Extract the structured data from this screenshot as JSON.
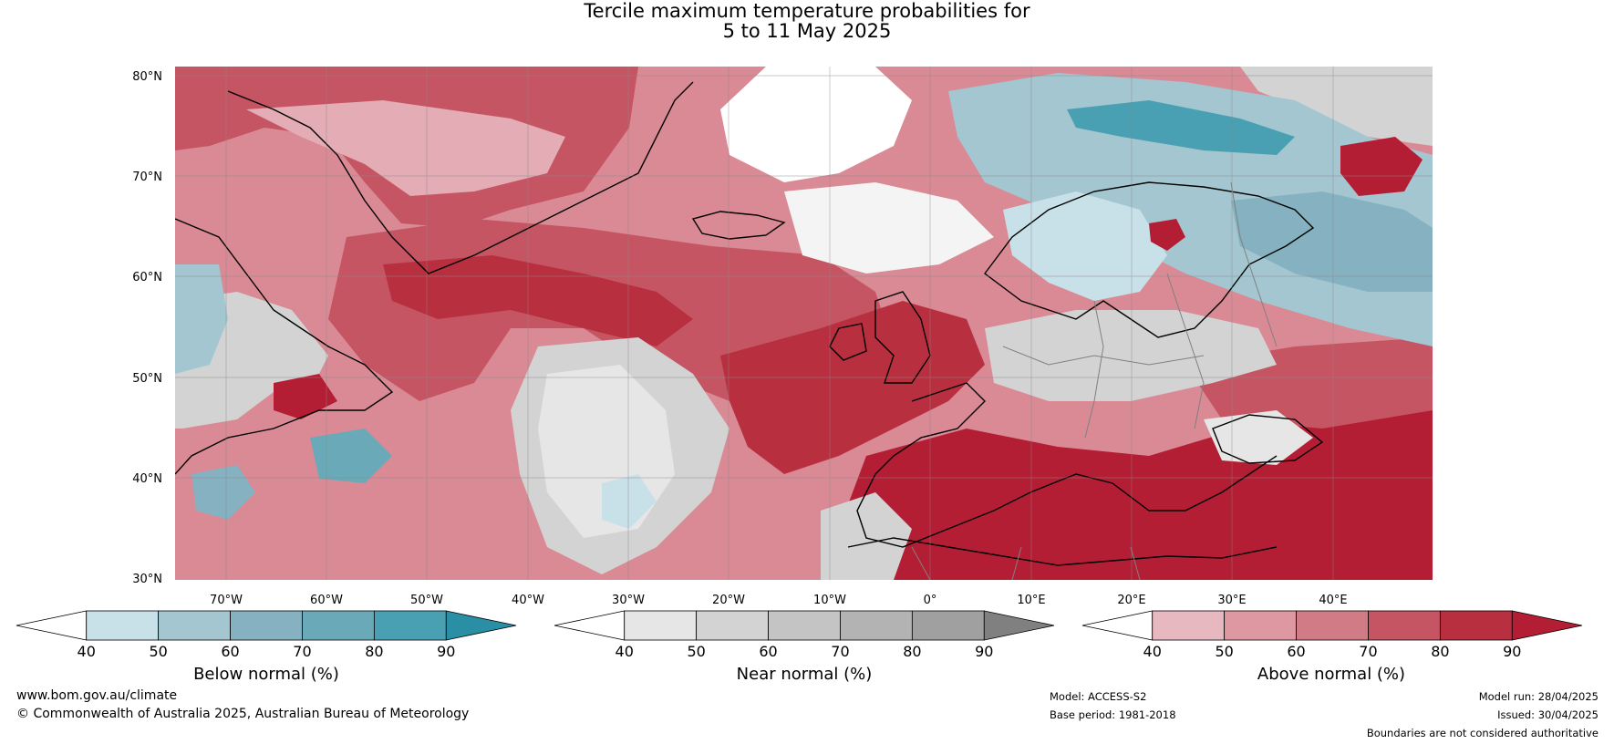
{
  "title": {
    "line1": "Tercile maximum temperature probabilities for",
    "line2": "5 to 11 May 2025"
  },
  "lat_labels": [
    "80°N",
    "70°N",
    "60°N",
    "50°N",
    "40°N",
    "30°N"
  ],
  "lon_labels": [
    "70°W",
    "60°W",
    "50°W",
    "40°W",
    "30°W",
    "20°W",
    "10°W",
    "0°",
    "10°E",
    "20°E",
    "30°E",
    "40°E"
  ],
  "colorbars": [
    {
      "id": "below",
      "title": "Below normal (%)",
      "ticks": [
        "40",
        "50",
        "60",
        "70",
        "80",
        "90"
      ],
      "colors": [
        "#ffffff",
        "#c8e0e8",
        "#a3c6d0",
        "#85b1c0",
        "#6aaab8",
        "#4aa0b3",
        "#2a8fa5"
      ]
    },
    {
      "id": "near",
      "title": "Near normal (%)",
      "ticks": [
        "40",
        "50",
        "60",
        "70",
        "80",
        "90"
      ],
      "colors": [
        "#ffffff",
        "#e6e6e6",
        "#d3d3d3",
        "#c4c4c4",
        "#b3b3b3",
        "#a0a0a0",
        "#808080"
      ]
    },
    {
      "id": "above",
      "title": "Above normal (%)",
      "ticks": [
        "40",
        "50",
        "60",
        "70",
        "80",
        "90"
      ],
      "colors": [
        "#ffffff",
        "#e8b8c0",
        "#de98a2",
        "#d07b86",
        "#c65563",
        "#b8303f",
        "#b41e35"
      ]
    }
  ],
  "footer": {
    "website": "www.bom.gov.au/climate",
    "copyright": "© Commonwealth of Australia 2025, Australian Bureau of Meteorology",
    "model": "Model: ACCESS-S2",
    "base_period": "Base period: 1981-2018",
    "model_run": "Model run: 28/04/2025",
    "issued": "Issued: 30/04/2025",
    "disclaimer": "Boundaries are not considered authoritative"
  }
}
